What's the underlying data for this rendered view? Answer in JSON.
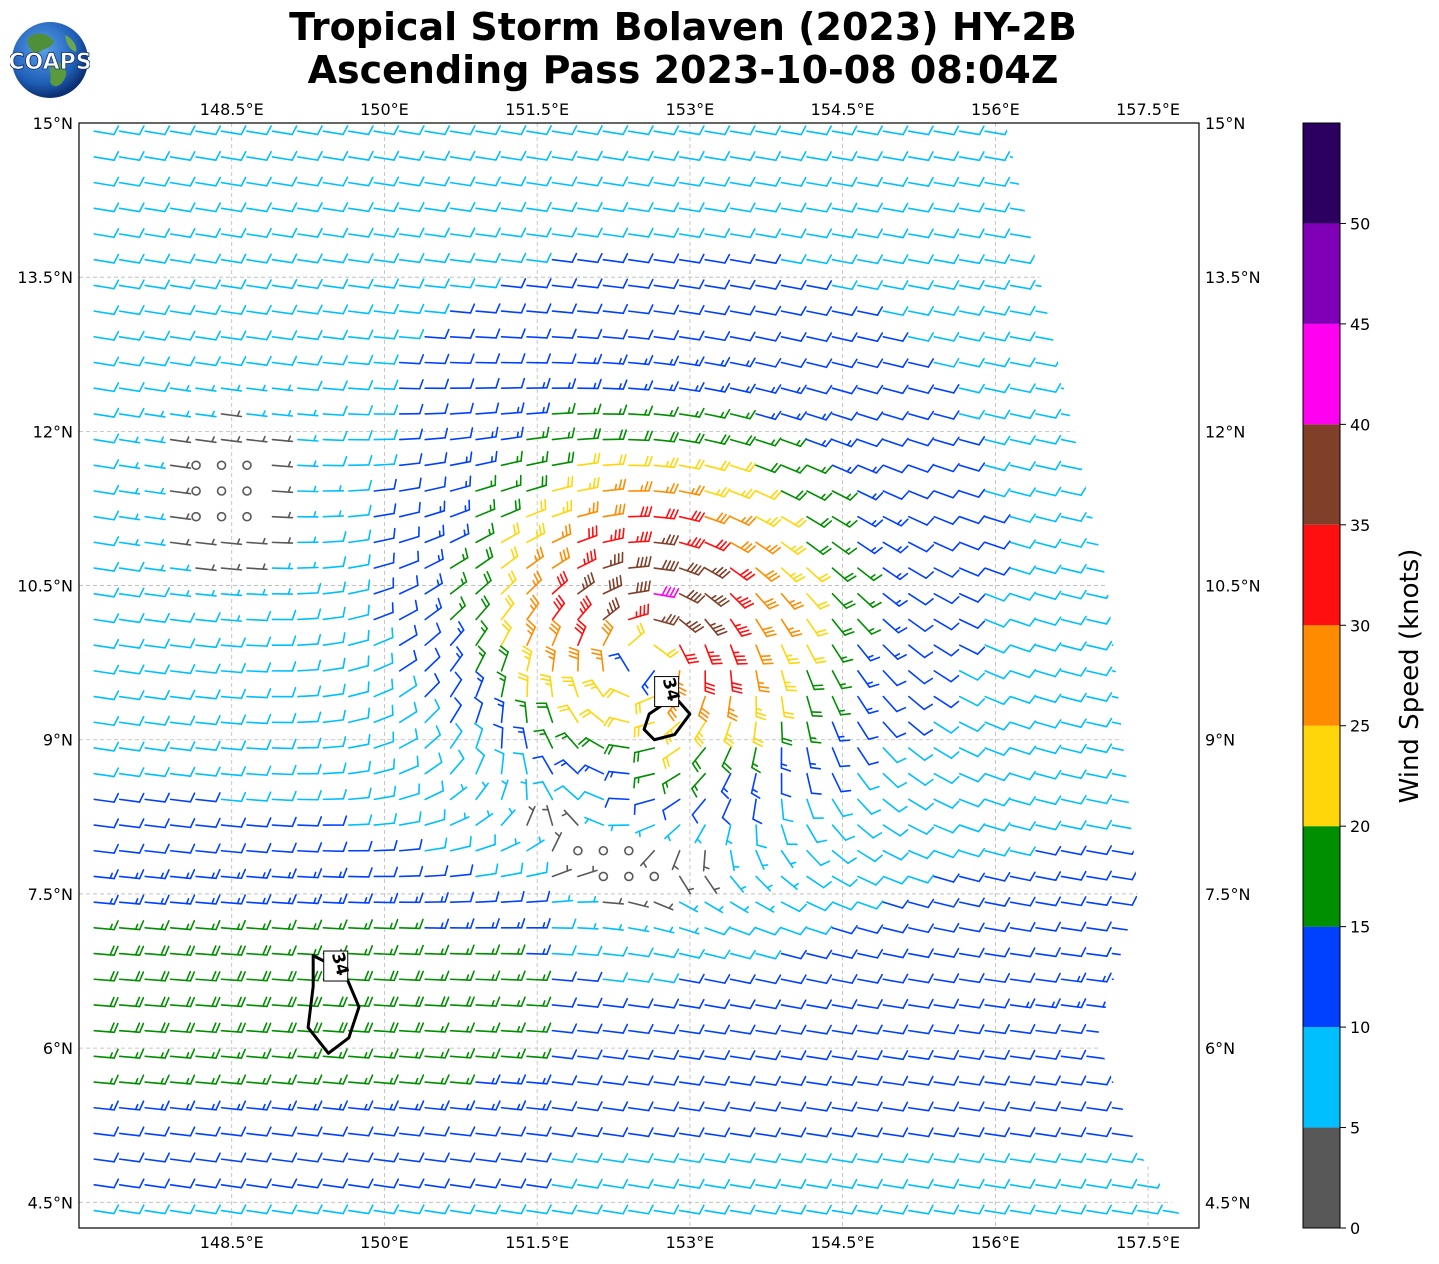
{
  "title": {
    "line1": "Tropical Storm Bolaven (2023) HY-2B",
    "line2": "Ascending Pass 2023-10-08 08:04Z"
  },
  "logo": {
    "text": "COAPS",
    "icon": "globe-icon"
  },
  "map": {
    "lon_range": [
      147.0,
      158.0
    ],
    "lat_range": [
      4.25,
      15.0
    ],
    "grid": true,
    "lon_ticks": [
      {
        "value": 148.5,
        "label": "148.5°E"
      },
      {
        "value": 150.0,
        "label": "150°E"
      },
      {
        "value": 151.5,
        "label": "151.5°E"
      },
      {
        "value": 153.0,
        "label": "153°E"
      },
      {
        "value": 154.5,
        "label": "154.5°E"
      },
      {
        "value": 156.0,
        "label": "156°E"
      },
      {
        "value": 157.5,
        "label": "157.5°E"
      }
    ],
    "lat_ticks": [
      {
        "value": 15.0,
        "label": "15°N"
      },
      {
        "value": 13.5,
        "label": "13.5°N"
      },
      {
        "value": 12.0,
        "label": "12°N"
      },
      {
        "value": 10.5,
        "label": "10.5°N"
      },
      {
        "value": 9.0,
        "label": "9°N"
      },
      {
        "value": 7.5,
        "label": "7.5°N"
      },
      {
        "value": 6.0,
        "label": "6°N"
      },
      {
        "value": 4.5,
        "label": "4.5°N"
      }
    ],
    "storm_center": {
      "lon": 152.55,
      "lat": 9.85
    },
    "swath_east_edge": [
      [
        156.1,
        15.0
      ],
      [
        157.1,
        10.5
      ],
      [
        157.4,
        7.5
      ],
      [
        157.0,
        6.1
      ],
      [
        157.4,
        5.0
      ],
      [
        157.9,
        4.25
      ]
    ],
    "contours": [
      {
        "label": "34",
        "points": [
          [
            152.6,
            9.25
          ],
          [
            152.85,
            9.42
          ],
          [
            153.0,
            9.25
          ],
          [
            152.85,
            9.05
          ],
          [
            152.65,
            9.0
          ],
          [
            152.55,
            9.1
          ]
        ]
      },
      {
        "label": "34",
        "points": [
          [
            149.3,
            6.9
          ],
          [
            149.6,
            6.75
          ],
          [
            149.75,
            6.4
          ],
          [
            149.65,
            6.1
          ],
          [
            149.45,
            5.95
          ],
          [
            149.25,
            6.2
          ],
          [
            149.3,
            6.6
          ]
        ]
      }
    ]
  },
  "colorbar": {
    "label": "Wind Speed (knots)",
    "min": 0,
    "max": 55,
    "bounds": [
      0,
      5,
      10,
      15,
      20,
      25,
      30,
      35,
      40,
      45,
      50,
      55
    ],
    "colors": [
      "#585858",
      "#00bfff",
      "#0040ff",
      "#008f00",
      "#ffd60a",
      "#ff8c00",
      "#ff0f0f",
      "#7f3f28",
      "#ff00f0",
      "#8000b8",
      "#2c0060"
    ],
    "ticks": [
      0,
      5,
      10,
      15,
      20,
      25,
      30,
      35,
      40,
      45,
      50
    ]
  }
}
